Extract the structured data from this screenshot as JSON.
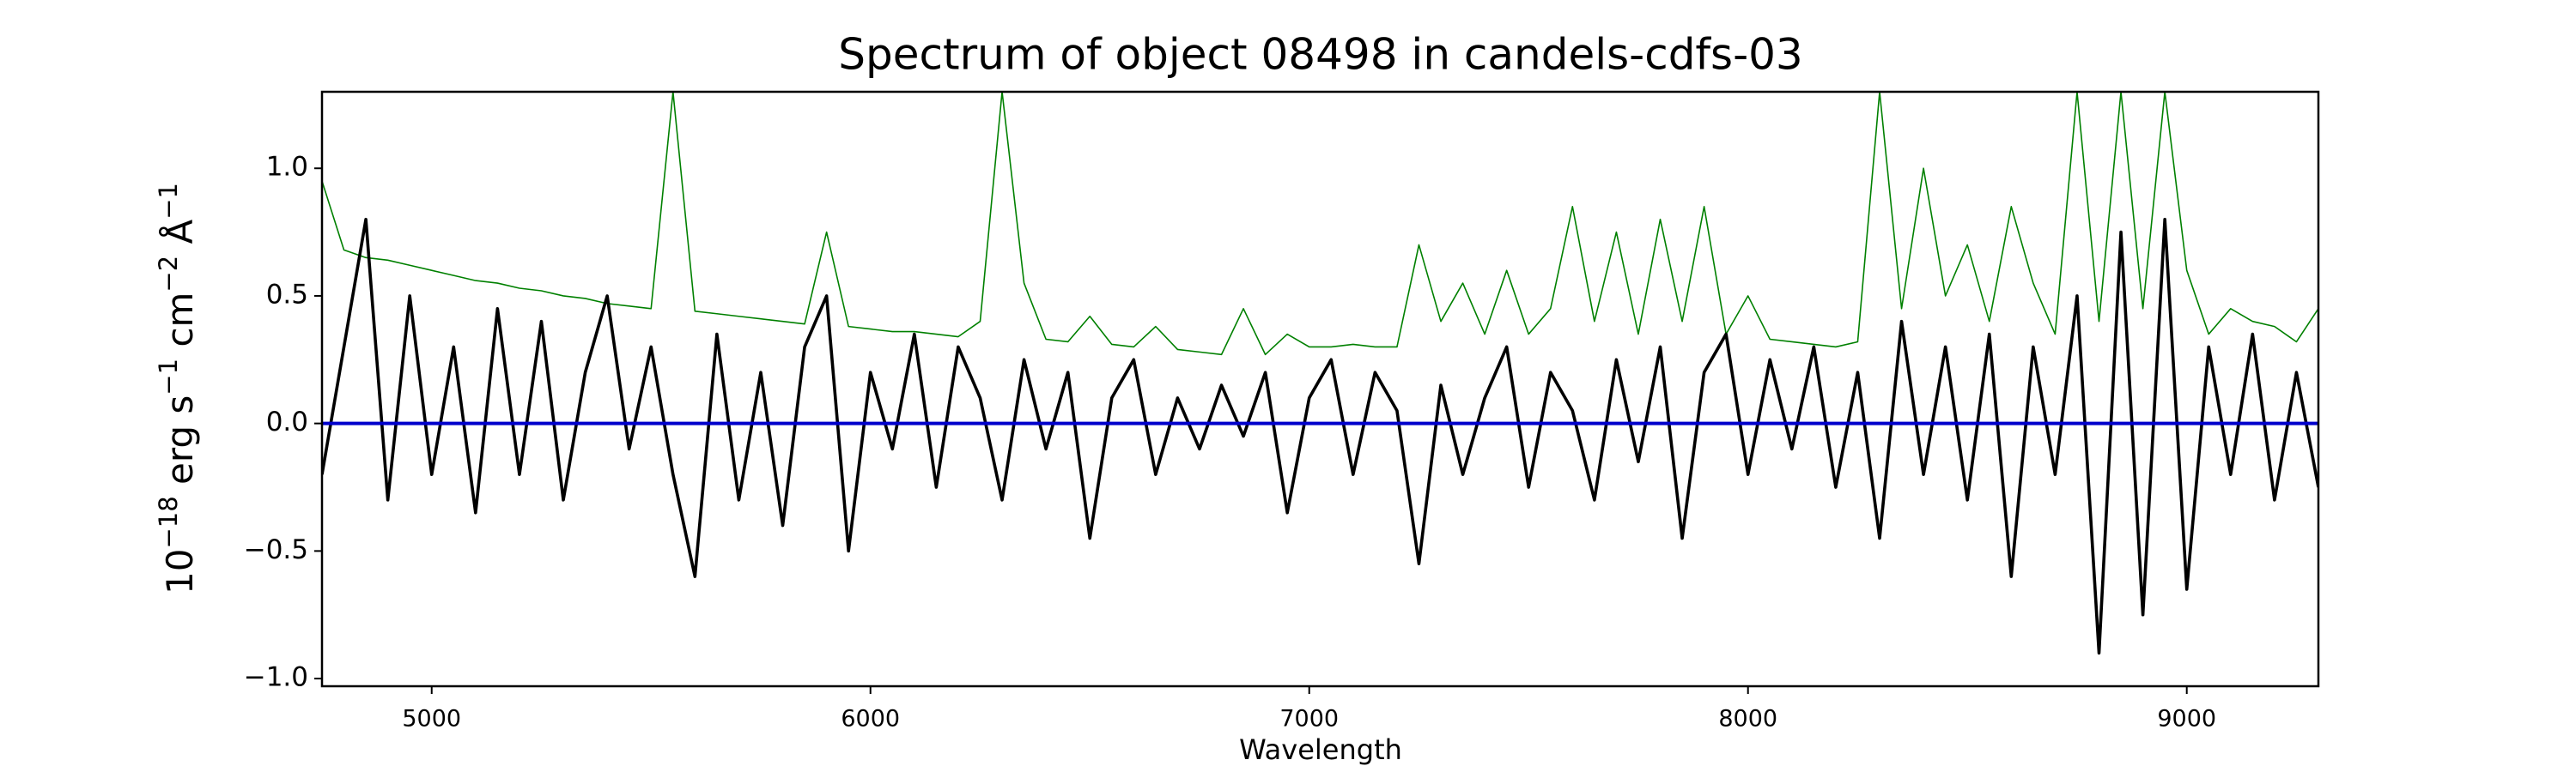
{
  "chart_data": {
    "type": "line",
    "title": "Spectrum of object 08498 in candels-cdfs-03",
    "xlabel": "Wavelength",
    "ylabel": [
      "10",
      "−18",
      " erg s",
      "−1",
      " cm",
      "−2",
      " Å",
      "−1"
    ],
    "x": [
      4750,
      4800,
      4850,
      4900,
      4950,
      5000,
      5050,
      5100,
      5150,
      5200,
      5250,
      5300,
      5350,
      5400,
      5450,
      5500,
      5550,
      5600,
      5650,
      5700,
      5750,
      5800,
      5850,
      5900,
      5950,
      6000,
      6050,
      6100,
      6150,
      6200,
      6250,
      6300,
      6350,
      6400,
      6450,
      6500,
      6550,
      6600,
      6650,
      6700,
      6750,
      6800,
      6850,
      6900,
      6950,
      7000,
      7050,
      7100,
      7150,
      7200,
      7250,
      7300,
      7350,
      7400,
      7450,
      7500,
      7550,
      7600,
      7650,
      7700,
      7750,
      7800,
      7850,
      7900,
      7950,
      8000,
      8050,
      8100,
      8150,
      8200,
      8250,
      8300,
      8350,
      8400,
      8450,
      8500,
      8550,
      8600,
      8650,
      8700,
      8750,
      8800,
      8850,
      8900,
      8950,
      9000,
      9050,
      9100,
      9150,
      9200,
      9250,
      9300
    ],
    "series": [
      {
        "color": "#008000",
        "values": [
          0.95,
          0.68,
          0.65,
          0.64,
          0.62,
          0.6,
          0.58,
          0.56,
          0.55,
          0.53,
          0.52,
          0.5,
          0.49,
          0.47,
          0.46,
          0.45,
          1.3,
          0.44,
          0.43,
          0.42,
          0.41,
          0.4,
          0.39,
          0.75,
          0.38,
          0.37,
          0.36,
          0.36,
          0.35,
          0.34,
          0.4,
          1.3,
          0.55,
          0.33,
          0.32,
          0.42,
          0.31,
          0.3,
          0.38,
          0.29,
          0.28,
          0.27,
          0.45,
          0.27,
          0.35,
          0.3,
          0.3,
          0.31,
          0.3,
          0.3,
          0.7,
          0.4,
          0.55,
          0.35,
          0.6,
          0.35,
          0.45,
          0.85,
          0.4,
          0.75,
          0.35,
          0.8,
          0.4,
          0.85,
          0.35,
          0.5,
          0.33,
          0.32,
          0.31,
          0.3,
          0.32,
          1.3,
          0.45,
          1.0,
          0.5,
          0.7,
          0.4,
          0.85,
          0.55,
          0.35,
          1.3,
          0.4,
          1.3,
          0.45,
          1.3,
          0.6,
          0.35,
          0.45,
          0.4,
          0.38,
          0.32,
          0.45
        ]
      },
      {
        "color": "#000000",
        "values": [
          -0.2,
          0.3,
          0.8,
          -0.3,
          0.5,
          -0.2,
          0.3,
          -0.35,
          0.45,
          -0.2,
          0.4,
          -0.3,
          0.2,
          0.5,
          -0.1,
          0.3,
          -0.2,
          -0.6,
          0.35,
          -0.3,
          0.2,
          -0.4,
          0.3,
          0.5,
          -0.5,
          0.2,
          -0.1,
          0.35,
          -0.25,
          0.3,
          0.1,
          -0.3,
          0.25,
          -0.1,
          0.2,
          -0.45,
          0.1,
          0.25,
          -0.2,
          0.1,
          -0.1,
          0.15,
          -0.05,
          0.2,
          -0.35,
          0.1,
          0.25,
          -0.2,
          0.2,
          0.05,
          -0.55,
          0.15,
          -0.2,
          0.1,
          0.3,
          -0.25,
          0.2,
          0.05,
          -0.3,
          0.25,
          -0.15,
          0.3,
          -0.45,
          0.2,
          0.35,
          -0.2,
          0.25,
          -0.1,
          0.3,
          -0.25,
          0.2,
          -0.45,
          0.4,
          -0.2,
          0.3,
          -0.3,
          0.35,
          -0.6,
          0.3,
          -0.2,
          0.5,
          -0.9,
          0.75,
          -0.75,
          0.8,
          -0.65,
          0.3,
          -0.2,
          0.35,
          -0.3,
          0.2,
          -0.25
        ]
      },
      {
        "color": "#0000cc",
        "values": [
          0,
          0,
          0,
          0,
          0,
          0,
          0,
          0,
          0,
          0,
          0,
          0,
          0,
          0,
          0,
          0,
          0,
          0,
          0,
          0,
          0,
          0,
          0,
          0,
          0,
          0,
          0,
          0,
          0,
          0,
          0,
          0,
          0,
          0,
          0,
          0,
          0,
          0,
          0,
          0,
          0,
          0,
          0,
          0,
          0,
          0,
          0,
          0,
          0,
          0,
          0,
          0,
          0,
          0,
          0,
          0,
          0,
          0,
          0,
          0,
          0,
          0,
          0,
          0,
          0,
          0,
          0,
          0,
          0,
          0,
          0,
          0,
          0,
          0,
          0,
          0,
          0,
          0,
          0,
          0,
          0,
          0,
          0,
          0,
          0,
          0,
          0,
          0,
          0,
          0,
          0,
          0
        ]
      }
    ],
    "xlim": [
      4750,
      9300
    ],
    "ylim": [
      -1.03,
      1.3
    ],
    "xticks": [
      5000,
      6000,
      7000,
      8000,
      9000
    ],
    "yticks": [
      {
        "value": -1.0,
        "label": "−1.0"
      },
      {
        "value": -0.5,
        "label": "−0.5"
      },
      {
        "value": 0.0,
        "label": "0.0"
      },
      {
        "value": 0.5,
        "label": "0.5"
      },
      {
        "value": 1.0,
        "label": "1.0"
      }
    ]
  }
}
